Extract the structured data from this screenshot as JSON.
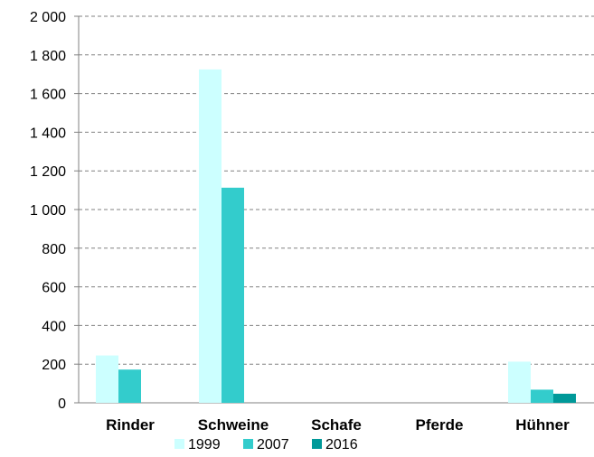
{
  "chart_data": {
    "type": "bar",
    "title": "",
    "xlabel": "",
    "ylabel": "",
    "categories": [
      "Rinder",
      "Schweine",
      "Schafe",
      "Pferde",
      "Hühner"
    ],
    "series": [
      {
        "name": "1999",
        "color": "#ccffff",
        "values": [
          245,
          1725,
          0,
          0,
          213
        ]
      },
      {
        "name": "2007",
        "color": "#33cccc",
        "values": [
          172,
          1113,
          0,
          0,
          68
        ]
      },
      {
        "name": "2016",
        "color": "#009999",
        "values": [
          0,
          0,
          0,
          0,
          47
        ]
      }
    ],
    "ylim": [
      0,
      2000
    ],
    "yticks": [
      0,
      200,
      400,
      600,
      800,
      1000,
      1200,
      1400,
      1600,
      1800,
      2000
    ],
    "ytick_labels": [
      "0",
      "200",
      "400",
      "600",
      "800",
      "1 000",
      "1 200",
      "1 400",
      "1 600",
      "1 800",
      "2 000"
    ],
    "grid": "horizontal dashed",
    "legend_position": "bottom"
  }
}
